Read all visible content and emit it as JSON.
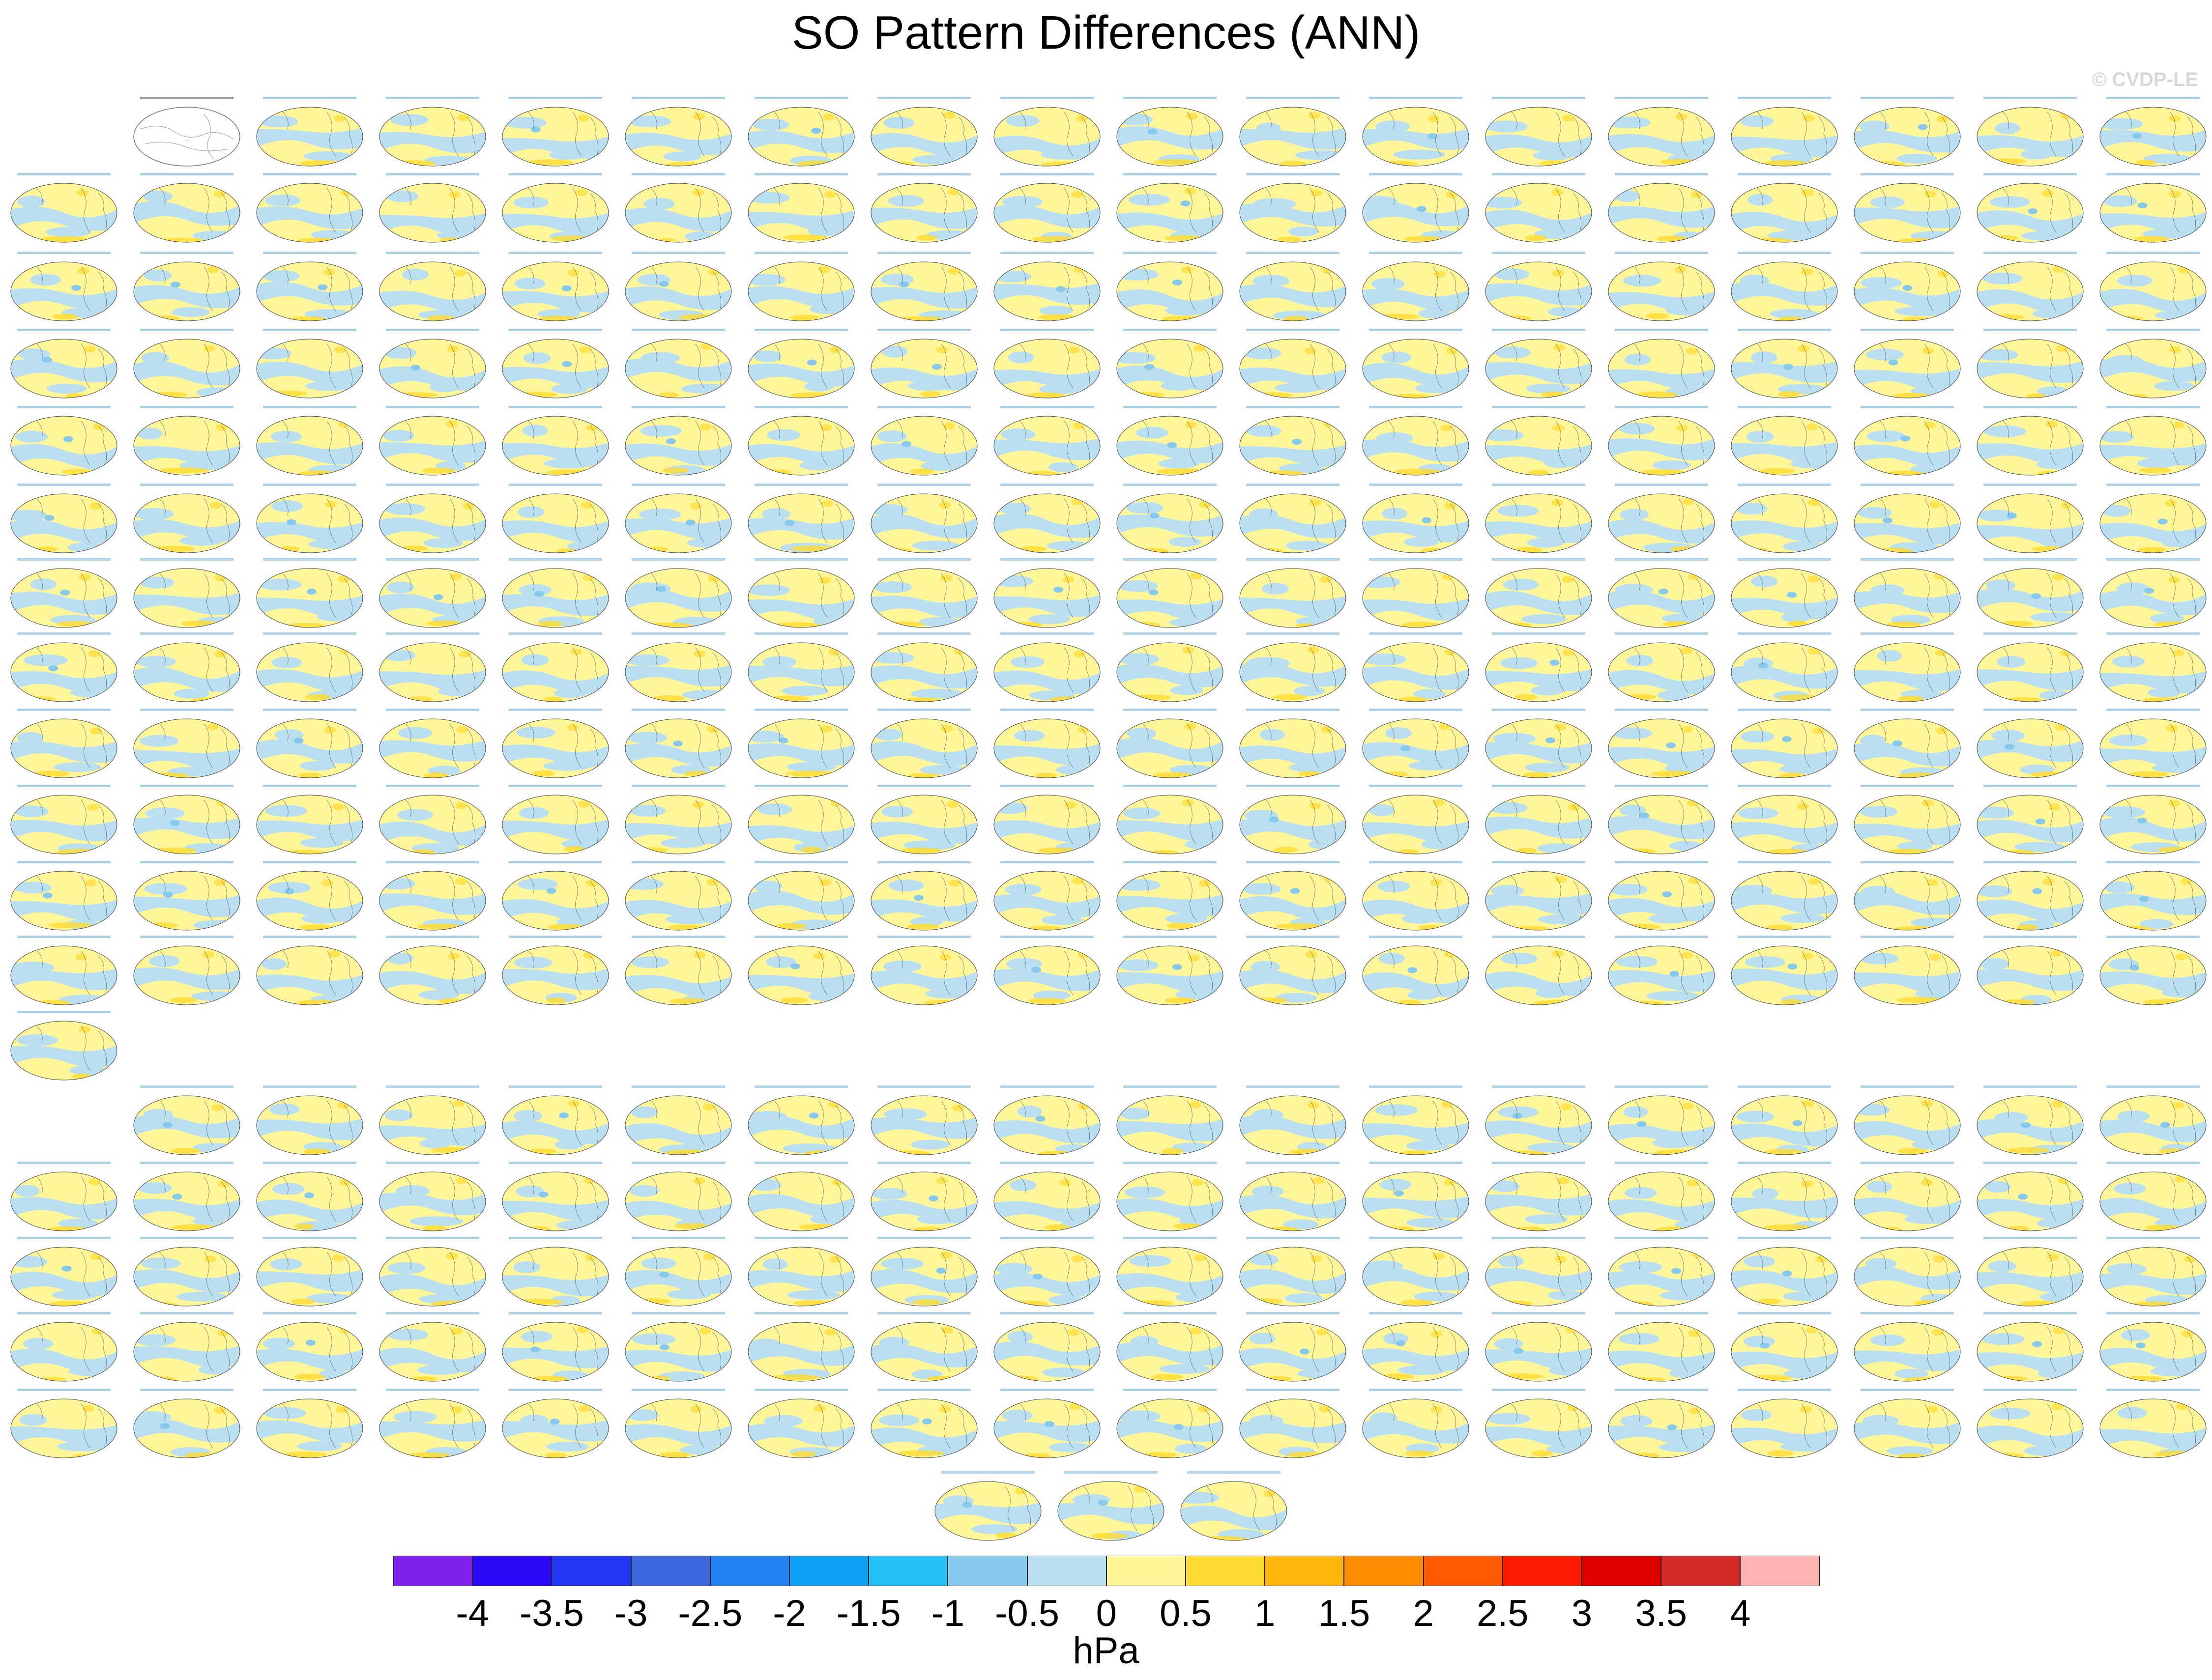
{
  "title": "SO Pattern Differences (ANN)",
  "watermark": "© CVDP-LE",
  "panel_grid": {
    "rows": [
      {
        "count": 17
      },
      {
        "count": 18
      },
      {
        "count": 18
      },
      {
        "count": 18
      },
      {
        "count": 18
      },
      {
        "count": 18
      },
      {
        "count": 18
      },
      {
        "count": 18
      },
      {
        "count": 18
      },
      {
        "count": 18
      },
      {
        "count": 18
      },
      {
        "count": 18
      },
      {
        "count": 1
      },
      {
        "count": 17
      },
      {
        "count": 18
      },
      {
        "count": 18
      },
      {
        "count": 18
      },
      {
        "count": 18
      },
      {
        "count": 3
      }
    ],
    "reference_panel": true
  },
  "colorbar": {
    "colors": [
      "#7f22ee",
      "#2a09f7",
      "#2338f5",
      "#3c68df",
      "#2483f3",
      "#0ea2f6",
      "#22c0f7",
      "#86c9ed",
      "#b9dff1",
      "#fff69a",
      "#ffdb2f",
      "#ffb70e",
      "#ff8c00",
      "#ff5a00",
      "#ff1a00",
      "#e10000",
      "#d42a29",
      "#ffb2b2"
    ],
    "labels": [
      "-4",
      "-3.5",
      "-3",
      "-2.5",
      "-2",
      "-1.5",
      "-1",
      "-0.5",
      "0",
      "0.5",
      "1",
      "1.5",
      "2",
      "2.5",
      "3",
      "3.5",
      "4"
    ],
    "units": "hPa"
  }
}
